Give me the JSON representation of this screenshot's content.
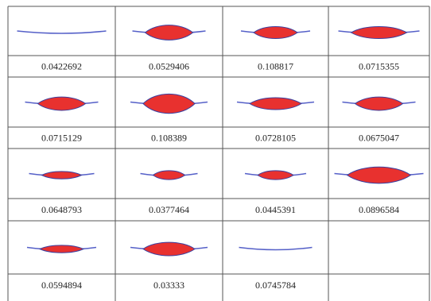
{
  "cells": [
    {
      "label": 0.0422692
    },
    {
      "label": 0.0529406
    },
    {
      "label": 0.108817
    },
    {
      "label": 0.0715355
    },
    {
      "label": 0.0715129
    },
    {
      "label": 0.108389
    },
    {
      "label": 0.0728105
    },
    {
      "label": 0.0675047
    },
    {
      "label": 0.0648793
    },
    {
      "label": 0.0377464
    },
    {
      "label": 0.0445391
    },
    {
      "label": 0.0896584
    },
    {
      "label": 0.0594894
    },
    {
      "label": 0.03333
    },
    {
      "label": 0.0745784
    }
  ]
}
